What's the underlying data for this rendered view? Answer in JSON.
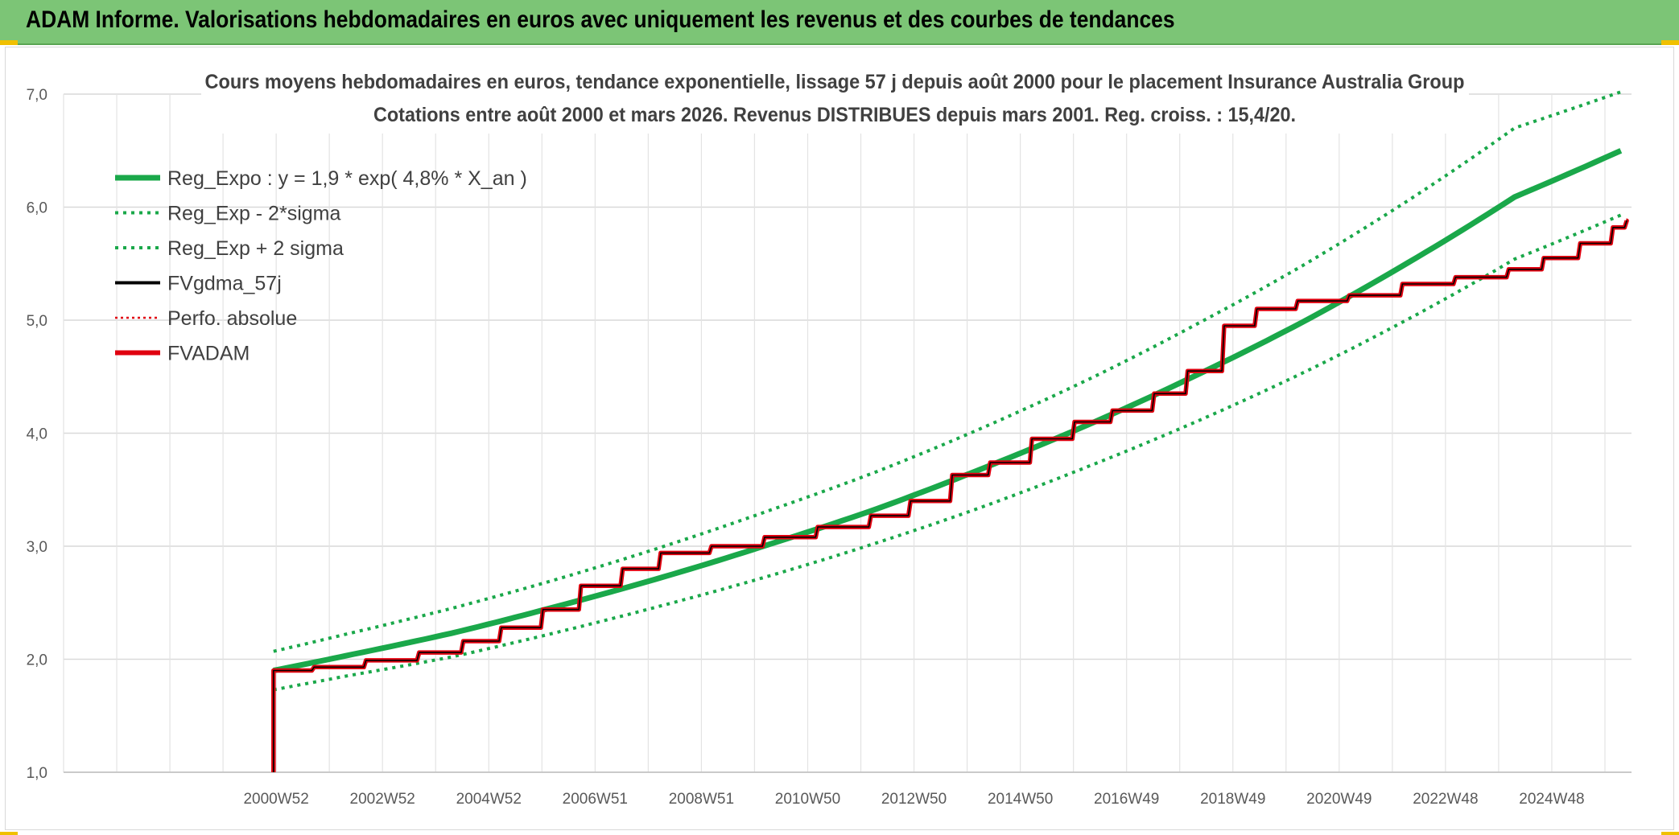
{
  "header": {
    "title": "ADAM Informe. Valorisations hebdomadaires en euros avec uniquement les revenus et des courbes de tendances"
  },
  "chart_data": {
    "type": "line",
    "title": "Cours moyens hebdomadaires en euros, tendance exponentielle, lissage 57 j depuis août 2000 pour le placement Insurance Australia Group",
    "subtitle": "Cotations entre août 2000 et mars 2026. Revenus DISTRIBUES depuis mars 2001. Reg. croiss. : 15,4/20.",
    "xlabel": "",
    "ylabel": "",
    "x_start": 1996.7,
    "x_end": 2026.2,
    "ylim": [
      1,
      7
    ],
    "y_ticks": [
      "1,0",
      "2,0",
      "3,0",
      "4,0",
      "5,0",
      "6,0",
      "7,0"
    ],
    "x_tick_labels": [
      "2000W52",
      "2002W52",
      "2004W52",
      "2006W51",
      "2008W51",
      "2010W50",
      "2012W50",
      "2014W50",
      "2016W49",
      "2018W49",
      "2020W49",
      "2022W48",
      "2024W48"
    ],
    "x_tick_years": [
      2000.7,
      2002.7,
      2004.7,
      2006.7,
      2008.7,
      2010.7,
      2012.7,
      2014.7,
      2016.7,
      2018.7,
      2020.7,
      2022.7,
      2024.7
    ],
    "grid": true,
    "legend_position": "top-left",
    "colors": {
      "reg_expo": "#1aa84a",
      "fvgdma": "#000000",
      "perfo": "#e0000f",
      "fvadam": "#e0000f"
    },
    "series": [
      {
        "name": "Reg_Expo : y = 1,9 * exp( 4,8% *  X_an )",
        "x": [
          2000.65,
          2002,
          2004,
          2006,
          2008,
          2010,
          2012,
          2014,
          2016,
          2018,
          2020,
          2022,
          2024,
          2026
        ],
        "values": [
          1.9,
          2.03,
          2.23,
          2.47,
          2.73,
          3.02,
          3.33,
          3.69,
          4.08,
          4.51,
          4.98,
          5.51,
          6.09,
          6.5
        ]
      },
      {
        "name": "Reg_Exp - 2*sigma",
        "x": [
          2000.65,
          2002,
          2004,
          2006,
          2008,
          2010,
          2012,
          2014,
          2016,
          2018,
          2020,
          2022,
          2024,
          2026
        ],
        "values": [
          1.73,
          1.85,
          2.02,
          2.24,
          2.48,
          2.74,
          3.03,
          3.35,
          3.71,
          4.1,
          4.53,
          5.01,
          5.54,
          5.93
        ]
      },
      {
        "name": "Reg_Exp + 2 sigma",
        "x": [
          2000.65,
          2002,
          2004,
          2006,
          2008,
          2010,
          2012,
          2014,
          2016,
          2018,
          2020,
          2022,
          2024,
          2026
        ],
        "values": [
          2.07,
          2.22,
          2.45,
          2.71,
          3.0,
          3.32,
          3.66,
          4.05,
          4.48,
          4.96,
          5.48,
          6.06,
          6.7,
          7.02
        ]
      },
      {
        "name": "FVgdma_57j",
        "x": [
          2000.65,
          2000.65,
          2001.5,
          2002.5,
          2003.5,
          2004.3,
          2005.0,
          2005.8,
          2006.5,
          2007.3,
          2008.0,
          2009.0,
          2010.0,
          2011.0,
          2012.0,
          2012.7,
          2013.5,
          2014.2,
          2015.0,
          2015.8,
          2016.5,
          2017.3,
          2017.9,
          2018.6,
          2019.2,
          2020.0,
          2021.0,
          2022.0,
          2023.0,
          2024.0,
          2024.6,
          2025.3,
          2025.9,
          2026.1
        ],
        "values": [
          1.0,
          1.9,
          1.93,
          1.99,
          2.06,
          2.16,
          2.28,
          2.44,
          2.65,
          2.8,
          2.94,
          3.0,
          3.08,
          3.17,
          3.27,
          3.4,
          3.63,
          3.74,
          3.95,
          4.1,
          4.2,
          4.35,
          4.55,
          4.95,
          5.1,
          5.17,
          5.22,
          5.32,
          5.38,
          5.45,
          5.55,
          5.68,
          5.82,
          5.88
        ]
      },
      {
        "name": "Perfo. absolue",
        "x": [],
        "values": []
      },
      {
        "name": "FVADAM",
        "x": [
          2000.65,
          2000.65,
          2001.5,
          2002.5,
          2003.5,
          2004.3,
          2005.0,
          2005.8,
          2006.5,
          2007.3,
          2008.0,
          2009.0,
          2010.0,
          2011.0,
          2012.0,
          2012.7,
          2013.5,
          2014.2,
          2015.0,
          2015.8,
          2016.5,
          2017.3,
          2017.9,
          2018.6,
          2019.2,
          2020.0,
          2021.0,
          2022.0,
          2023.0,
          2024.0,
          2024.6,
          2025.3,
          2025.9,
          2026.1
        ],
        "values": [
          1.0,
          1.9,
          1.93,
          1.99,
          2.06,
          2.16,
          2.28,
          2.44,
          2.65,
          2.8,
          2.94,
          3.0,
          3.08,
          3.17,
          3.27,
          3.4,
          3.63,
          3.74,
          3.95,
          4.1,
          4.2,
          4.35,
          4.55,
          4.95,
          5.1,
          5.17,
          5.22,
          5.32,
          5.38,
          5.45,
          5.55,
          5.68,
          5.82,
          5.88
        ]
      }
    ]
  }
}
